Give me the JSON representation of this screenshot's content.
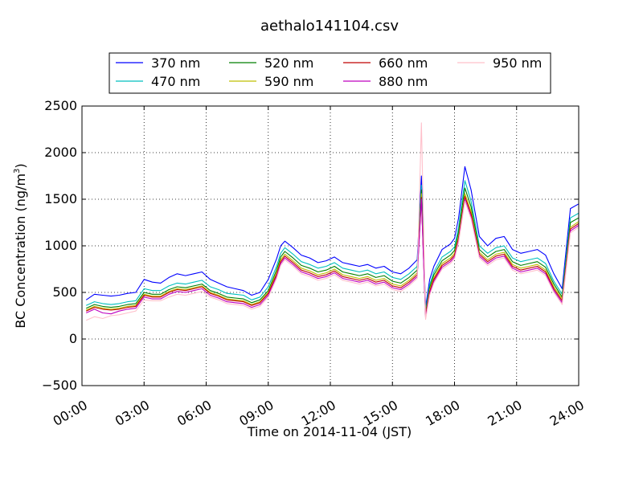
{
  "chart_data": {
    "type": "line",
    "title": "aethalo141104.csv",
    "xlabel": "Time on 2014-11-04 (JST)",
    "ylabel": "BC Concentration (ng/m",
    "ylabel_sup": "3",
    "ylabel_close": ")",
    "xlim": [
      0,
      24
    ],
    "ylim": [
      -500,
      2500
    ],
    "grid": true,
    "legend_position": "top-center",
    "x_ticks": [
      {
        "value": 0,
        "label": "00:00"
      },
      {
        "value": 3,
        "label": "03:00"
      },
      {
        "value": 6,
        "label": "06:00"
      },
      {
        "value": 9,
        "label": "09:00"
      },
      {
        "value": 12,
        "label": "12:00"
      },
      {
        "value": 15,
        "label": "15:00"
      },
      {
        "value": 18,
        "label": "18:00"
      },
      {
        "value": 21,
        "label": "21:00"
      },
      {
        "value": 24,
        "label": "24:00"
      }
    ],
    "y_ticks": [
      {
        "value": -500,
        "label": "−500"
      },
      {
        "value": 0,
        "label": "0"
      },
      {
        "value": 500,
        "label": "500"
      },
      {
        "value": 1000,
        "label": "1000"
      },
      {
        "value": 1500,
        "label": "1500"
      },
      {
        "value": 2000,
        "label": "2000"
      },
      {
        "value": 2500,
        "label": "2500"
      }
    ],
    "x": [
      0.2,
      0.6,
      1.0,
      1.4,
      1.8,
      2.2,
      2.6,
      3.0,
      3.4,
      3.8,
      4.2,
      4.6,
      5.0,
      5.4,
      5.8,
      6.2,
      6.6,
      7.0,
      7.4,
      7.8,
      8.2,
      8.6,
      9.0,
      9.4,
      9.6,
      9.8,
      10.2,
      10.6,
      11.0,
      11.4,
      11.8,
      12.2,
      12.6,
      13.0,
      13.4,
      13.8,
      14.2,
      14.6,
      15.0,
      15.4,
      15.8,
      16.2,
      16.4,
      16.6,
      16.8,
      17.0,
      17.4,
      17.8,
      18.0,
      18.2,
      18.5,
      18.8,
      19.2,
      19.6,
      20.0,
      20.4,
      20.8,
      21.2,
      21.6,
      22.0,
      22.4,
      22.8,
      23.2,
      23.6,
      24.0
    ],
    "series": [
      {
        "name": "370 nm",
        "color": "#0000ff",
        "values": [
          420,
          480,
          470,
          460,
          470,
          490,
          500,
          640,
          610,
          600,
          660,
          700,
          680,
          700,
          720,
          640,
          600,
          560,
          540,
          520,
          470,
          500,
          640,
          860,
          1000,
          1050,
          980,
          900,
          870,
          820,
          840,
          880,
          820,
          800,
          780,
          800,
          760,
          780,
          720,
          700,
          760,
          850,
          1750,
          340,
          640,
          780,
          960,
          1020,
          1080,
          1300,
          1850,
          1600,
          1100,
          1000,
          1080,
          1100,
          960,
          920,
          940,
          960,
          900,
          700,
          540,
          1400,
          1450
        ]
      },
      {
        "name": "470 nm",
        "color": "#00bfbf",
        "values": [
          360,
          400,
          380,
          370,
          380,
          400,
          410,
          540,
          520,
          520,
          570,
          600,
          590,
          610,
          630,
          560,
          530,
          490,
          480,
          470,
          420,
          450,
          560,
          780,
          920,
          980,
          910,
          830,
          800,
          760,
          780,
          820,
          760,
          740,
          720,
          740,
          700,
          720,
          660,
          640,
          700,
          780,
          1650,
          300,
          580,
          720,
          880,
          940,
          990,
          1200,
          1700,
          1480,
          1000,
          920,
          980,
          1000,
          870,
          830,
          850,
          870,
          810,
          620,
          480,
          1300,
          1350
        ]
      },
      {
        "name": "520 nm",
        "color": "#007f00",
        "values": [
          330,
          370,
          350,
          340,
          350,
          370,
          380,
          500,
          480,
          480,
          530,
          560,
          550,
          570,
          590,
          520,
          490,
          450,
          440,
          430,
          390,
          420,
          520,
          740,
          880,
          940,
          870,
          790,
          760,
          720,
          740,
          780,
          720,
          700,
          680,
          700,
          660,
          680,
          620,
          600,
          660,
          740,
          1600,
          280,
          550,
          690,
          840,
          900,
          950,
          1150,
          1620,
          1420,
          960,
          880,
          940,
          960,
          830,
          790,
          810,
          830,
          770,
          590,
          450,
          1250,
          1300
        ]
      },
      {
        "name": "590 nm",
        "color": "#bfbf00",
        "values": [
          310,
          350,
          330,
          320,
          330,
          350,
          360,
          480,
          460,
          460,
          510,
          540,
          530,
          550,
          570,
          500,
          470,
          430,
          420,
          410,
          370,
          400,
          500,
          710,
          850,
          910,
          840,
          760,
          730,
          690,
          710,
          750,
          690,
          670,
          650,
          670,
          630,
          650,
          590,
          570,
          630,
          710,
          1560,
          260,
          530,
          660,
          810,
          870,
          920,
          1100,
          1560,
          1370,
          930,
          850,
          910,
          930,
          800,
          760,
          780,
          800,
          740,
          560,
          430,
          1200,
          1260
        ]
      },
      {
        "name": "660 nm",
        "color": "#bf0000",
        "values": [
          300,
          340,
          320,
          310,
          320,
          340,
          350,
          470,
          450,
          450,
          500,
          530,
          520,
          540,
          560,
          490,
          460,
          420,
          410,
          400,
          360,
          390,
          490,
          690,
          830,
          890,
          820,
          740,
          710,
          670,
          690,
          730,
          670,
          650,
          630,
          650,
          610,
          630,
          570,
          550,
          610,
          690,
          1520,
          250,
          510,
          640,
          790,
          850,
          900,
          1080,
          1530,
          1340,
          910,
          830,
          890,
          910,
          780,
          740,
          760,
          780,
          720,
          540,
          410,
          1180,
          1240
        ]
      },
      {
        "name": "880 nm",
        "color": "#bf00bf",
        "values": [
          280,
          320,
          280,
          270,
          300,
          320,
          330,
          450,
          430,
          430,
          480,
          510,
          500,
          520,
          540,
          470,
          440,
          400,
          390,
          380,
          340,
          370,
          470,
          670,
          810,
          870,
          800,
          720,
          690,
          650,
          670,
          710,
          650,
          630,
          610,
          630,
          590,
          610,
          550,
          530,
          590,
          670,
          1500,
          230,
          490,
          620,
          770,
          830,
          880,
          1060,
          1500,
          1310,
          890,
          810,
          870,
          890,
          760,
          720,
          740,
          760,
          700,
          520,
          390,
          1160,
          1220
        ]
      },
      {
        "name": "950 nm",
        "color": "#ffc0cb",
        "values": [
          200,
          240,
          220,
          250,
          260,
          280,
          300,
          420,
          410,
          410,
          450,
          480,
          470,
          490,
          510,
          450,
          420,
          380,
          370,
          360,
          320,
          350,
          450,
          650,
          790,
          850,
          780,
          700,
          670,
          630,
          650,
          690,
          630,
          610,
          590,
          610,
          570,
          590,
          530,
          510,
          570,
          650,
          2320,
          210,
          470,
          600,
          750,
          810,
          860,
          1040,
          1480,
          1290,
          870,
          790,
          850,
          870,
          740,
          700,
          720,
          740,
          680,
          500,
          370,
          1140,
          1200
        ]
      }
    ]
  }
}
